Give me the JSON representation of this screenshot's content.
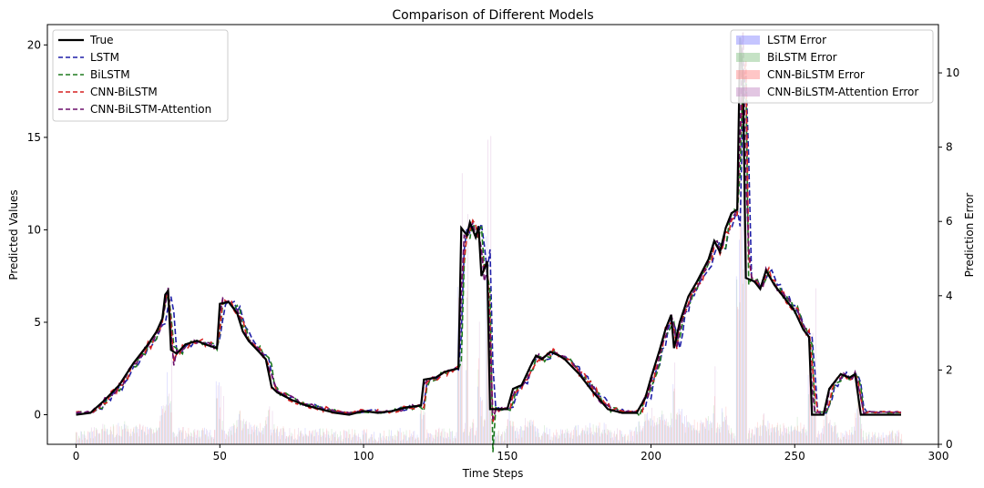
{
  "chart_data": {
    "type": "line",
    "title": "Comparison of Different Models",
    "xlabel": "Time Steps",
    "ylabel": "Predicted Values",
    "y2label": "Prediction Error",
    "xlim": [
      -10,
      300
    ],
    "ylim": [
      -1.6,
      21.1
    ],
    "y2lim": [
      0,
      11.3
    ],
    "xticks": [
      0,
      50,
      100,
      150,
      200,
      250,
      300
    ],
    "yticks": [
      0,
      5,
      10,
      15,
      20
    ],
    "y2ticks": [
      0,
      2,
      4,
      6,
      8,
      10
    ],
    "grid": false,
    "legend_left": [
      "True",
      "LSTM",
      "BiLSTM",
      "CNN-BiLSTM",
      "CNN-BiLSTM-Attention"
    ],
    "legend_right": [
      "LSTM Error",
      "BiLSTM Error",
      "CNN-BiLSTM Error",
      "CNN-BiLSTM-Attention Error"
    ],
    "line_colors": {
      "True": "#000000",
      "LSTM": "#1f1fa8",
      "BiLSTM": "#1f7a1f",
      "CNN-BiLSTM": "#d62020",
      "CNN-BiLSTM-Attention": "#6b0f6b"
    },
    "error_colors": {
      "LSTM Error": "#7f7fff",
      "BiLSTM Error": "#7fbf7f",
      "CNN-BiLSTM Error": "#ff8080",
      "CNN-BiLSTM-Attention Error": "#bf80bf"
    },
    "true_series": [
      [
        0,
        0.0
      ],
      [
        5,
        0.1
      ],
      [
        10,
        0.8
      ],
      [
        15,
        1.6
      ],
      [
        20,
        2.8
      ],
      [
        25,
        3.8
      ],
      [
        28,
        4.5
      ],
      [
        30,
        5.2
      ],
      [
        31,
        6.5
      ],
      [
        32,
        6.7
      ],
      [
        33,
        3.5
      ],
      [
        35,
        3.3
      ],
      [
        38,
        3.8
      ],
      [
        42,
        4.0
      ],
      [
        45,
        3.8
      ],
      [
        49,
        3.6
      ],
      [
        50,
        6.0
      ],
      [
        53,
        6.1
      ],
      [
        56,
        5.5
      ],
      [
        58,
        4.5
      ],
      [
        60,
        4.0
      ],
      [
        63,
        3.5
      ],
      [
        66,
        3.0
      ],
      [
        68,
        1.5
      ],
      [
        70,
        1.2
      ],
      [
        75,
        0.8
      ],
      [
        80,
        0.5
      ],
      [
        85,
        0.3
      ],
      [
        90,
        0.1
      ],
      [
        95,
        0.0
      ],
      [
        100,
        0.2
      ],
      [
        105,
        0.1
      ],
      [
        110,
        0.2
      ],
      [
        115,
        0.4
      ],
      [
        120,
        0.5
      ],
      [
        121,
        1.9
      ],
      [
        125,
        2.0
      ],
      [
        128,
        2.3
      ],
      [
        130,
        2.4
      ],
      [
        133,
        2.5
      ],
      [
        134,
        10.1
      ],
      [
        136,
        9.7
      ],
      [
        137,
        10.4
      ],
      [
        139,
        9.6
      ],
      [
        140,
        10.2
      ],
      [
        141,
        7.5
      ],
      [
        143,
        8.3
      ],
      [
        144,
        0.3
      ],
      [
        146,
        0.3
      ],
      [
        150,
        0.3
      ],
      [
        152,
        1.4
      ],
      [
        155,
        1.6
      ],
      [
        158,
        2.6
      ],
      [
        160,
        3.2
      ],
      [
        162,
        3.0
      ],
      [
        165,
        3.4
      ],
      [
        168,
        3.2
      ],
      [
        170,
        3.0
      ],
      [
        175,
        2.2
      ],
      [
        180,
        1.2
      ],
      [
        185,
        0.3
      ],
      [
        190,
        0.1
      ],
      [
        195,
        0.1
      ],
      [
        198,
        0.9
      ],
      [
        200,
        2.0
      ],
      [
        203,
        3.5
      ],
      [
        205,
        4.6
      ],
      [
        207,
        5.4
      ],
      [
        208,
        3.6
      ],
      [
        210,
        5.0
      ],
      [
        213,
        6.4
      ],
      [
        216,
        7.2
      ],
      [
        220,
        8.4
      ],
      [
        222,
        9.4
      ],
      [
        224,
        8.8
      ],
      [
        226,
        10.1
      ],
      [
        228,
        10.9
      ],
      [
        230,
        11.1
      ],
      [
        231,
        20.4
      ],
      [
        232,
        18.0
      ],
      [
        233,
        7.4
      ],
      [
        236,
        7.2
      ],
      [
        238,
        6.8
      ],
      [
        240,
        7.8
      ],
      [
        243,
        7.0
      ],
      [
        246,
        6.4
      ],
      [
        250,
        5.6
      ],
      [
        253,
        4.6
      ],
      [
        255,
        4.2
      ],
      [
        256,
        0.0
      ],
      [
        260,
        0.0
      ],
      [
        262,
        1.4
      ],
      [
        266,
        2.2
      ],
      [
        269,
        2.0
      ],
      [
        271,
        2.2
      ],
      [
        273,
        0.0
      ],
      [
        280,
        0.0
      ],
      [
        287,
        0.0
      ]
    ],
    "error_peaks": [
      [
        33,
        2.4
      ],
      [
        51,
        1.3
      ],
      [
        68,
        0.9
      ],
      [
        134,
        7.3
      ],
      [
        136,
        6.2
      ],
      [
        140,
        3.3
      ],
      [
        143,
        8.2
      ],
      [
        144,
        8.3
      ],
      [
        208,
        2.2
      ],
      [
        222,
        2.1
      ],
      [
        231,
        10.4
      ],
      [
        232,
        9.5
      ],
      [
        256,
        3.0
      ],
      [
        257,
        4.2
      ]
    ],
    "lstm_error_peaks": [
      [
        134,
        5.0
      ],
      [
        233,
        6.8
      ]
    ]
  }
}
